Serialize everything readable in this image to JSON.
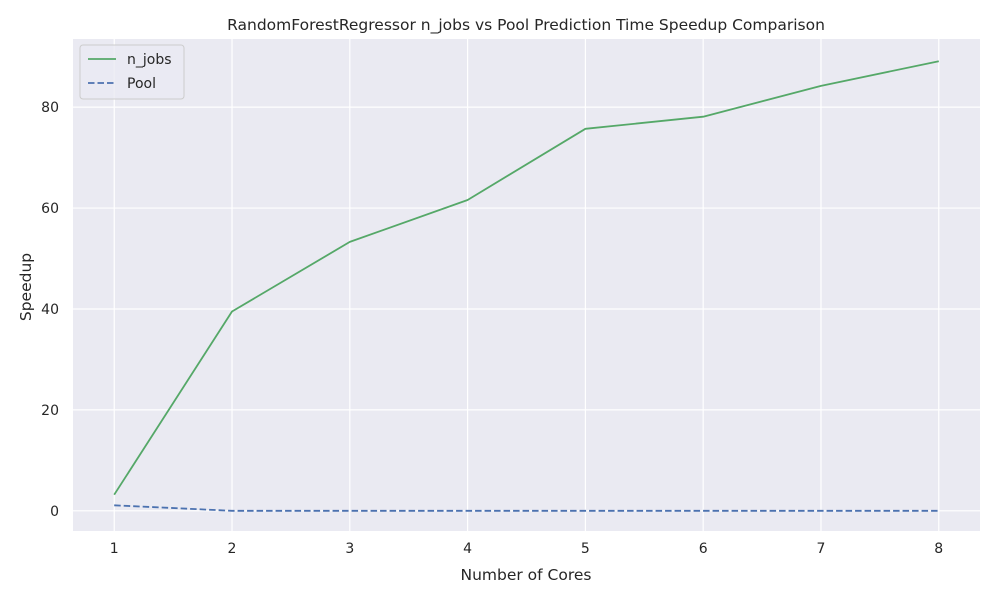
{
  "chart_data": {
    "type": "line",
    "title": "RandomForestRegressor n_jobs vs Pool Prediction Time Speedup Comparison",
    "xlabel": "Number of Cores",
    "ylabel": "Speedup",
    "x": [
      1,
      2,
      3,
      4,
      5,
      6,
      7,
      8
    ],
    "xlim": [
      0.65,
      8.35
    ],
    "ylim": [
      -4,
      93.5
    ],
    "xticks": [
      1,
      2,
      3,
      4,
      5,
      6,
      7,
      8
    ],
    "yticks": [
      0,
      20,
      40,
      60,
      80
    ],
    "grid": true,
    "legend_position": "top-left",
    "series": [
      {
        "name": "n_jobs",
        "color": "#55a868",
        "dash": "solid",
        "values": [
          3.2,
          39.5,
          53.3,
          61.6,
          75.7,
          78.1,
          84.2,
          89.1
        ]
      },
      {
        "name": "Pool",
        "color": "#4c72b0",
        "dash": "dashed",
        "values": [
          1.1,
          0.0,
          0.0,
          0.0,
          0.0,
          0.0,
          0.0,
          0.0
        ]
      }
    ]
  },
  "theme": {
    "plot_background": "#eaeaf2",
    "grid_color": "#ffffff"
  }
}
